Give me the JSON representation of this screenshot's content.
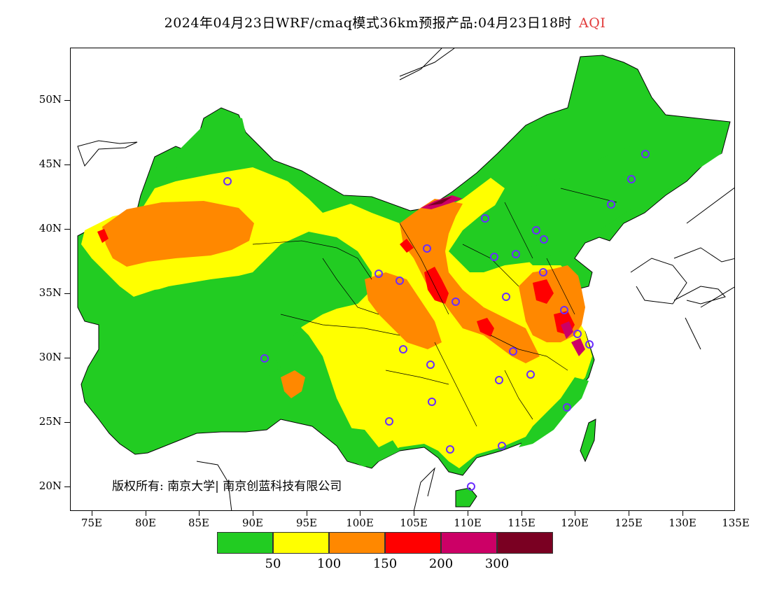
{
  "title": {
    "main": "2024年04月23日WRF/cmaq模式36km预报产品:04月23日18时",
    "variable": "AQI",
    "variable_color": "#e23a3a"
  },
  "axes": {
    "lat_labels": [
      "50N",
      "45N",
      "40N",
      "35N",
      "30N",
      "25N",
      "20N"
    ],
    "lon_labels": [
      "75E",
      "80E",
      "85E",
      "90E",
      "95E",
      "100E",
      "105E",
      "110E",
      "115E",
      "120E",
      "125E",
      "130E",
      "135E"
    ]
  },
  "copyright": "版权所有: 南京大学| 南京创蓝科技有限公司",
  "colorbar": {
    "colors": [
      "#22cc22",
      "#ffff00",
      "#ff8800",
      "#ff0000",
      "#cc0066",
      "#7a0022"
    ],
    "labels": [
      "50",
      "100",
      "150",
      "200",
      "300"
    ]
  }
}
